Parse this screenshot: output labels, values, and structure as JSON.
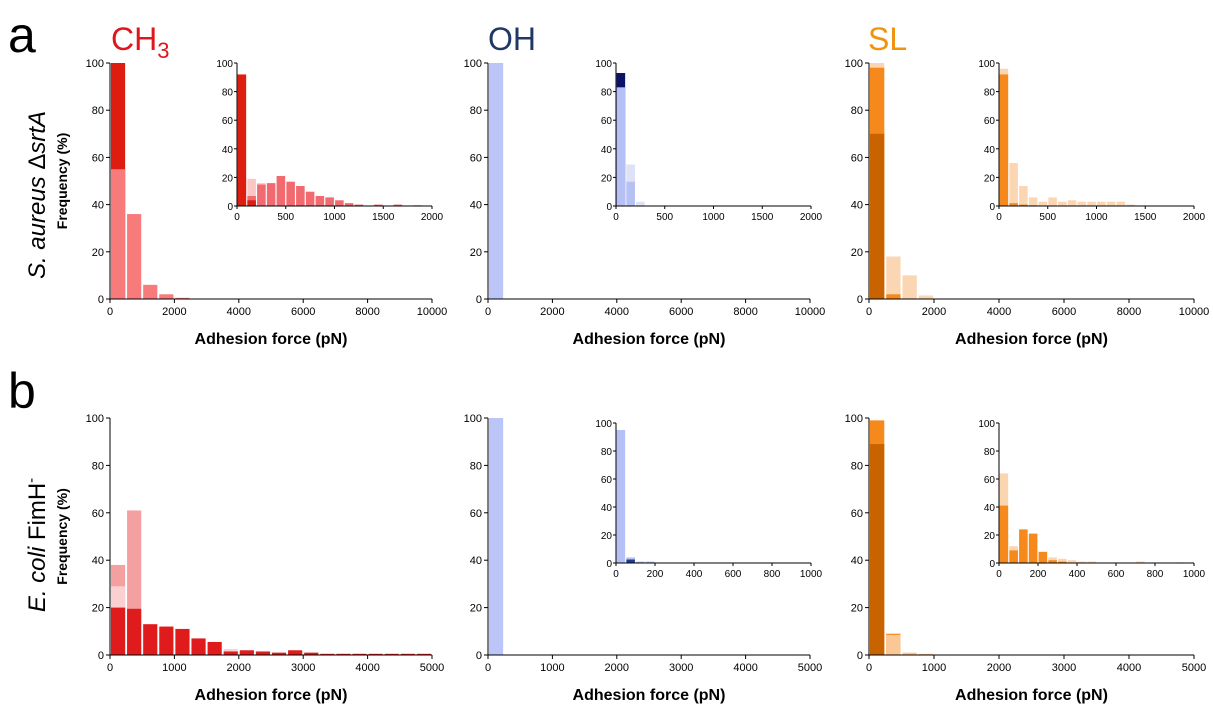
{
  "panels": [
    {
      "letter": "a",
      "row_label_italic": "S. aureus",
      "row_label_rest": " Δ",
      "row_label_italic2": "srtA",
      "row_label_sup": ""
    },
    {
      "letter": "b",
      "row_label_italic": "E. coli",
      "row_label_rest": " FimH",
      "row_label_italic2": "",
      "row_label_sup": "-"
    }
  ],
  "columns": [
    {
      "title": "CH",
      "sub": "3",
      "color": "#e0161b"
    },
    {
      "title": "OH",
      "sub": "",
      "color": "#1f3864"
    },
    {
      "title": "SL",
      "sub": "",
      "color": "#f0930f"
    }
  ],
  "chart_data": [
    {
      "id": "a-ch3",
      "type": "bar",
      "xlabel": "Adhesion force (pN)",
      "ylabel": "Frequency (%)",
      "xlim": [
        0,
        10000
      ],
      "ylim": [
        0,
        100
      ],
      "xticks": [
        "0",
        "2000",
        "4000",
        "6000",
        "8000",
        "10000"
      ],
      "yticks": [
        "0",
        "20",
        "40",
        "60",
        "80",
        "100"
      ],
      "bin_width": 500,
      "series": [
        {
          "color": "#f77b7b",
          "values": [
            [
              250,
              55
            ],
            [
              750,
              36
            ],
            [
              1250,
              6
            ],
            [
              1750,
              2
            ],
            [
              2250,
              0.5
            ]
          ]
        },
        {
          "color": "#de1d10",
          "values": [
            [
              250,
              100
            ]
          ]
        },
        {
          "color": "#f77b7b",
          "values": [
            [
              250,
              55
            ]
          ]
        }
      ],
      "inset": {
        "xlim": [
          0,
          2000
        ],
        "ylim": [
          0,
          100
        ],
        "xticks": [
          "0",
          "500",
          "1000",
          "1500",
          "2000"
        ],
        "yticks": [
          "0",
          "20",
          "40",
          "60",
          "80",
          "100"
        ],
        "bin_width": 100,
        "series": [
          {
            "color": "#fbc6c6",
            "values": [
              [
                150,
                19
              ],
              [
                250,
                16
              ]
            ]
          },
          {
            "color": "#f06a6f",
            "values": [
              [
                50,
                20
              ],
              [
                150,
                7
              ],
              [
                250,
                15
              ],
              [
                350,
                16
              ],
              [
                450,
                21
              ],
              [
                550,
                17
              ],
              [
                650,
                14
              ],
              [
                750,
                10
              ],
              [
                850,
                7
              ],
              [
                950,
                6
              ],
              [
                1050,
                4
              ],
              [
                1150,
                2
              ],
              [
                1250,
                1
              ],
              [
                1450,
                1
              ],
              [
                1650,
                1
              ],
              [
                1850,
                0.5
              ]
            ]
          },
          {
            "color": "#de1d10",
            "values": [
              [
                50,
                92
              ],
              [
                150,
                4
              ]
            ]
          }
        ]
      }
    },
    {
      "id": "a-oh",
      "type": "bar",
      "xlabel": "Adhesion force (pN)",
      "ylabel": "",
      "xlim": [
        0,
        10000
      ],
      "ylim": [
        0,
        100
      ],
      "xticks": [
        "0",
        "2000",
        "4000",
        "6000",
        "8000",
        "10000"
      ],
      "yticks": [
        "0",
        "20",
        "40",
        "60",
        "80",
        "100"
      ],
      "bin_width": 500,
      "series": [
        {
          "color": "#bcc5f7",
          "values": [
            [
              250,
              100
            ]
          ]
        }
      ],
      "inset": {
        "xlim": [
          0,
          2000
        ],
        "ylim": [
          0,
          100
        ],
        "xticks": [
          "0",
          "500",
          "1000",
          "1500",
          "2000"
        ],
        "yticks": [
          "0",
          "20",
          "40",
          "60",
          "80",
          "100"
        ],
        "bin_width": 100,
        "series": [
          {
            "color": "#0b1466",
            "values": [
              [
                50,
                93
              ]
            ]
          },
          {
            "color": "#b5c0f4",
            "values": [
              [
                50,
                83
              ]
            ]
          },
          {
            "color": "#dde2f6",
            "values": [
              [
                150,
                29
              ],
              [
                250,
                3
              ]
            ]
          },
          {
            "color": "#b5c0f4",
            "values": [
              [
                150,
                17
              ]
            ]
          }
        ]
      }
    },
    {
      "id": "a-sl",
      "type": "bar",
      "xlabel": "Adhesion force (pN)",
      "ylabel": "",
      "xlim": [
        0,
        10000
      ],
      "ylim": [
        0,
        100
      ],
      "xticks": [
        "0",
        "2000",
        "4000",
        "6000",
        "8000",
        "10000"
      ],
      "yticks": [
        "0",
        "20",
        "40",
        "60",
        "80",
        "100"
      ],
      "bin_width": 500,
      "series": [
        {
          "color": "#fad6b3",
          "values": [
            [
              250,
              100
            ],
            [
              750,
              18
            ],
            [
              1250,
              10
            ],
            [
              1750,
              1.5
            ]
          ]
        },
        {
          "color": "#f5891c",
          "values": [
            [
              250,
              98
            ],
            [
              750,
              2
            ]
          ]
        },
        {
          "color": "#c96300",
          "values": [
            [
              250,
              70
            ]
          ]
        }
      ],
      "inset": {
        "xlim": [
          0,
          2000
        ],
        "ylim": [
          0,
          100
        ],
        "xticks": [
          "0",
          "500",
          "1000",
          "1500",
          "2000"
        ],
        "yticks": [
          "0",
          "20",
          "40",
          "60",
          "80",
          "100"
        ],
        "bin_width": 100,
        "series": [
          {
            "color": "#fad6b3",
            "values": [
              [
                50,
                96
              ],
              [
                150,
                30
              ],
              [
                250,
                14
              ],
              [
                350,
                6
              ],
              [
                450,
                3
              ],
              [
                550,
                6
              ],
              [
                650,
                3
              ],
              [
                750,
                4
              ],
              [
                850,
                3
              ],
              [
                950,
                3
              ],
              [
                1050,
                3
              ],
              [
                1150,
                3
              ],
              [
                1250,
                3
              ],
              [
                1350,
                1
              ]
            ]
          },
          {
            "color": "#f5891c",
            "values": [
              [
                50,
                92
              ],
              [
                150,
                2
              ],
              [
                250,
                1
              ],
              [
                350,
                0.5
              ]
            ]
          }
        ]
      }
    },
    {
      "id": "b-ch3",
      "type": "bar",
      "xlabel": "Adhesion force (pN)",
      "ylabel": "Frequency (%)",
      "xlim": [
        0,
        5000
      ],
      "ylim": [
        0,
        100
      ],
      "xticks": [
        "0",
        "1000",
        "2000",
        "3000",
        "4000",
        "5000"
      ],
      "yticks": [
        "0",
        "20",
        "40",
        "60",
        "80",
        "100"
      ],
      "bin_width": 250,
      "series": [
        {
          "color": "#f5a0a0",
          "values": [
            [
              125,
              38
            ],
            [
              375,
              61
            ]
          ]
        },
        {
          "color": "#fbd0d0",
          "values": [
            [
              125,
              29
            ],
            [
              1875,
              2.5
            ]
          ]
        },
        {
          "color": "#e01b1b",
          "values": [
            [
              125,
              20
            ],
            [
              375,
              19.5
            ],
            [
              625,
              13
            ],
            [
              875,
              12
            ],
            [
              1125,
              11
            ],
            [
              1375,
              7
            ],
            [
              1625,
              5.5
            ],
            [
              1875,
              1.5
            ],
            [
              2125,
              2
            ],
            [
              2375,
              1.5
            ],
            [
              2625,
              1
            ],
            [
              2875,
              2
            ],
            [
              3125,
              1
            ],
            [
              3375,
              0.5
            ],
            [
              3625,
              0.5
            ],
            [
              3875,
              0.5
            ],
            [
              4125,
              0.5
            ],
            [
              4375,
              0.5
            ],
            [
              4625,
              0.5
            ],
            [
              4875,
              0.5
            ]
          ]
        }
      ],
      "inset": null
    },
    {
      "id": "b-oh",
      "type": "bar",
      "xlabel": "Adhesion force (pN)",
      "ylabel": "",
      "xlim": [
        0,
        5000
      ],
      "ylim": [
        0,
        100
      ],
      "xticks": [
        "0",
        "1000",
        "2000",
        "3000",
        "4000",
        "5000"
      ],
      "yticks": [
        "0",
        "20",
        "40",
        "60",
        "80",
        "100"
      ],
      "bin_width": 250,
      "series": [
        {
          "color": "#bcc5f7",
          "values": [
            [
              125,
              100
            ]
          ]
        }
      ],
      "inset": {
        "xlim": [
          0,
          1000
        ],
        "ylim": [
          0,
          100
        ],
        "xticks": [
          "0",
          "200",
          "400",
          "600",
          "800",
          "1000"
        ],
        "yticks": [
          "0",
          "20",
          "40",
          "60",
          "80",
          "100"
        ],
        "bin_width": 50,
        "series": [
          {
            "color": "#b5c0f4",
            "values": [
              [
                25,
                95
              ],
              [
                75,
                4
              ],
              [
                125,
                1
              ],
              [
                175,
                1
              ]
            ]
          },
          {
            "color": "#1f3c8c",
            "values": [
              [
                75,
                2.5
              ]
            ]
          }
        ]
      }
    },
    {
      "id": "b-sl",
      "type": "bar",
      "xlabel": "Adhesion force (pN)",
      "ylabel": "",
      "xlim": [
        0,
        5000
      ],
      "ylim": [
        0,
        100
      ],
      "xticks": [
        "0",
        "1000",
        "2000",
        "3000",
        "4000",
        "5000"
      ],
      "yticks": [
        "0",
        "20",
        "40",
        "60",
        "80",
        "100"
      ],
      "bin_width": 250,
      "series": [
        {
          "color": "#f5891c",
          "values": [
            [
              125,
              99
            ],
            [
              375,
              9
            ]
          ]
        },
        {
          "color": "#fbc895",
          "values": [
            [
              375,
              8.5
            ],
            [
              625,
              1
            ],
            [
              875,
              0.5
            ]
          ]
        },
        {
          "color": "#c96300",
          "values": [
            [
              125,
              89
            ]
          ]
        }
      ],
      "inset": {
        "xlim": [
          0,
          1000
        ],
        "ylim": [
          0,
          100
        ],
        "xticks": [
          "0",
          "200",
          "400",
          "600",
          "800",
          "1000"
        ],
        "yticks": [
          "0",
          "20",
          "40",
          "60",
          "80",
          "100"
        ],
        "bin_width": 50,
        "series": [
          {
            "color": "#fbd5b0",
            "values": [
              [
                25,
                64
              ],
              [
                75,
                12
              ],
              [
                125,
                17
              ],
              [
                175,
                19
              ],
              [
                225,
                7
              ],
              [
                275,
                4
              ],
              [
                325,
                3
              ],
              [
                375,
                2
              ],
              [
                425,
                1
              ],
              [
                475,
                1
              ],
              [
                725,
                1
              ],
              [
                925,
                0.5
              ]
            ]
          },
          {
            "color": "#f5891c",
            "values": [
              [
                25,
                41
              ],
              [
                75,
                9
              ],
              [
                125,
                24
              ],
              [
                175,
                21
              ],
              [
                225,
                8
              ],
              [
                275,
                2
              ],
              [
                325,
                1
              ]
            ]
          }
        ]
      }
    }
  ]
}
